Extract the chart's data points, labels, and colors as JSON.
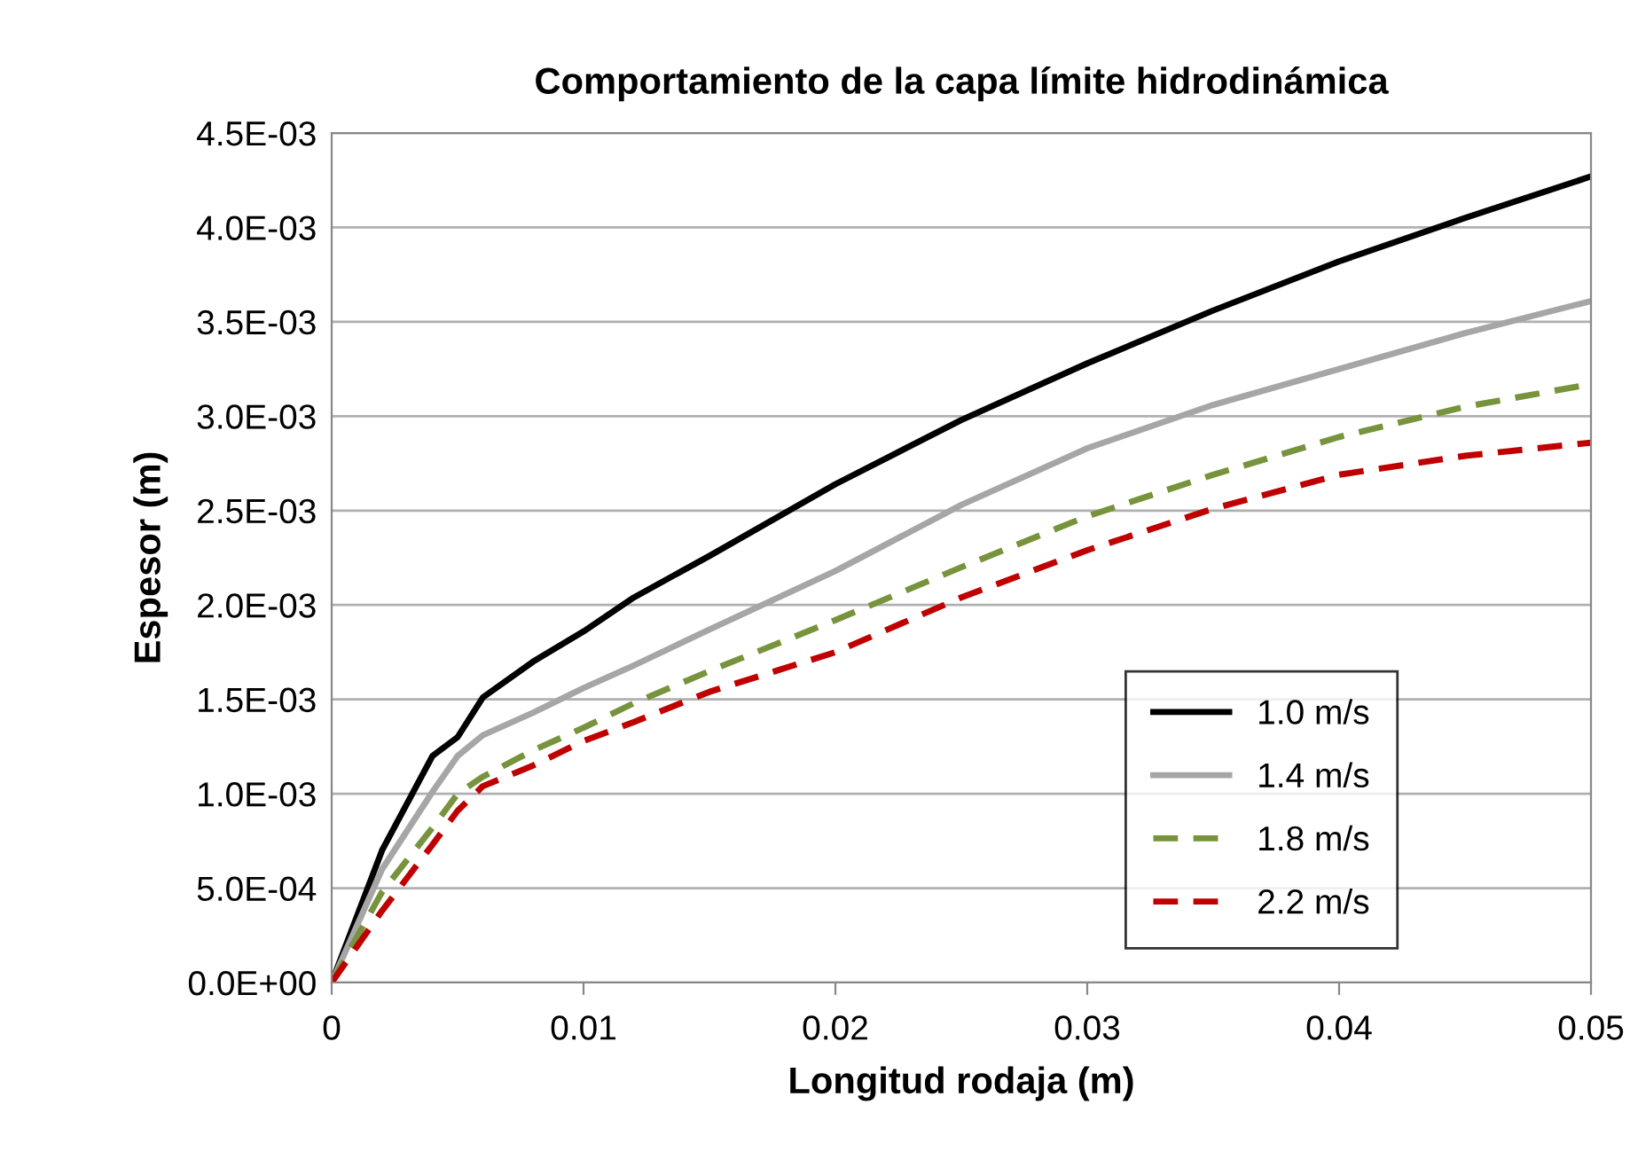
{
  "chart_data": {
    "type": "line",
    "title": "Comportamiento de la capa límite hidrodinámica",
    "xlabel": "Longitud rodaja (m)",
    "ylabel": "Espesor (m)",
    "x": [
      0,
      0.002,
      0.004,
      0.005,
      0.006,
      0.008,
      0.01,
      0.012,
      0.015,
      0.02,
      0.025,
      0.03,
      0.035,
      0.04,
      0.045,
      0.05
    ],
    "series": [
      {
        "name": "1.0 m/s",
        "color": "#000000",
        "line_style": "solid",
        "values": [
          0,
          0.0007,
          0.0012,
          0.0013,
          0.00151,
          0.0017,
          0.00186,
          0.00204,
          0.00226,
          0.00264,
          0.00298,
          0.00328,
          0.00356,
          0.00382,
          0.00405,
          0.00427
        ]
      },
      {
        "name": "1.4 m/s",
        "color": "#a6a6a6",
        "line_style": "solid",
        "values": [
          0,
          0.0006,
          0.00101,
          0.0012,
          0.00131,
          0.00143,
          0.00156,
          0.00168,
          0.00187,
          0.00218,
          0.00253,
          0.00283,
          0.00306,
          0.00325,
          0.00344,
          0.00361
        ]
      },
      {
        "name": "1.8 m/s",
        "color": "#77933c",
        "line_style": "dashed",
        "values": [
          0,
          0.00048,
          0.00082,
          0.001,
          0.00109,
          0.00123,
          0.00135,
          0.00148,
          0.00165,
          0.00192,
          0.0022,
          0.00247,
          0.00269,
          0.00289,
          0.00305,
          0.00317
        ]
      },
      {
        "name": "2.2 m/s",
        "color": "#c00000",
        "line_style": "dashed",
        "values": [
          0,
          0.00038,
          0.00073,
          0.00091,
          0.00104,
          0.00115,
          0.00128,
          0.00138,
          0.00154,
          0.00175,
          0.00204,
          0.00229,
          0.00251,
          0.00269,
          0.00279,
          0.00286
        ]
      }
    ],
    "xlim": [
      0,
      0.05
    ],
    "xticks": [
      0,
      0.01,
      0.02,
      0.03,
      0.04,
      0.05
    ],
    "ylim": [
      0,
      0.0045
    ],
    "yticks": [
      {
        "value": 0,
        "label": "0.0E+00"
      },
      {
        "value": 0.0005,
        "label": "5.0E-04"
      },
      {
        "value": 0.001,
        "label": "1.0E-03"
      },
      {
        "value": 0.0015,
        "label": "1.5E-03"
      },
      {
        "value": 0.002,
        "label": "2.0E-03"
      },
      {
        "value": 0.0025,
        "label": "2.5E-03"
      },
      {
        "value": 0.003,
        "label": "3.0E-03"
      },
      {
        "value": 0.0035,
        "label": "3.5E-03"
      },
      {
        "value": 0.004,
        "label": "4.0E-03"
      },
      {
        "value": 0.0045,
        "label": "4.5E-03"
      }
    ],
    "grid": "y",
    "legend": "bottom right"
  }
}
